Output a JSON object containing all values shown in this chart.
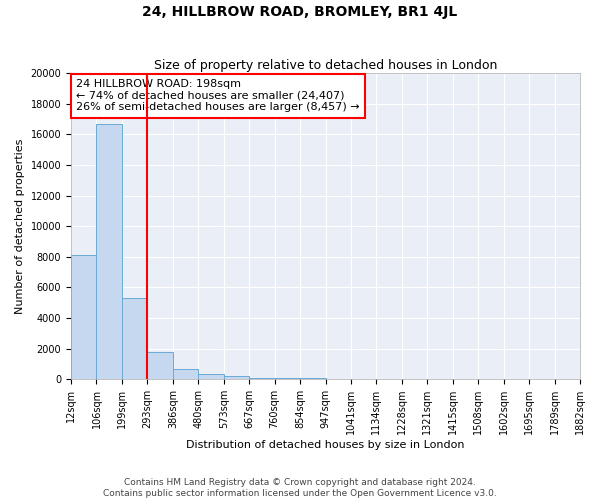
{
  "title": "24, HILLBROW ROAD, BROMLEY, BR1 4JL",
  "subtitle": "Size of property relative to detached houses in London",
  "xlabel": "Distribution of detached houses by size in London",
  "ylabel": "Number of detached properties",
  "footnote1": "Contains HM Land Registry data © Crown copyright and database right 2024.",
  "footnote2": "Contains public sector information licensed under the Open Government Licence v3.0.",
  "bar_heights": [
    8100,
    16700,
    5300,
    1750,
    700,
    350,
    200,
    100,
    70,
    50,
    30,
    20,
    15,
    10,
    8,
    6,
    4,
    3,
    2,
    1
  ],
  "bar_color": "#c5d8ef",
  "bar_edge_color": "#6aaad4",
  "vline_bar_index": 2,
  "vline_color": "red",
  "annotation_text": "24 HILLBROW ROAD: 198sqm\n← 74% of detached houses are smaller (24,407)\n26% of semi-detached houses are larger (8,457) →",
  "annotation_box_color": "red",
  "annotation_bg": "white",
  "ylim": [
    0,
    20000
  ],
  "yticks": [
    0,
    2000,
    4000,
    6000,
    8000,
    10000,
    12000,
    14000,
    16000,
    18000,
    20000
  ],
  "xtick_labels": [
    "12sqm",
    "106sqm",
    "199sqm",
    "293sqm",
    "386sqm",
    "480sqm",
    "573sqm",
    "667sqm",
    "760sqm",
    "854sqm",
    "947sqm",
    "1041sqm",
    "1134sqm",
    "1228sqm",
    "1321sqm",
    "1415sqm",
    "1508sqm",
    "1602sqm",
    "1695sqm",
    "1789sqm",
    "1882sqm"
  ],
  "bg_color": "#eaeff7",
  "grid_color": "white",
  "title_fontsize": 10,
  "subtitle_fontsize": 9,
  "axis_label_fontsize": 8,
  "tick_fontsize": 7,
  "annotation_fontsize": 8,
  "footnote_fontsize": 6.5
}
